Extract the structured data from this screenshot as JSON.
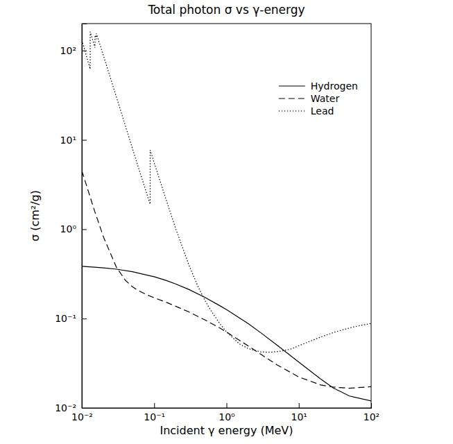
{
  "chart_data": {
    "type": "line",
    "title": "Total photon σ vs γ-energy",
    "x_label": "Incident γ energy (MeV)",
    "y_label": "σ (cm²/g)",
    "log": true,
    "grid": false,
    "legend": "upper right",
    "xlim": [
      0.01,
      100
    ],
    "ylim": [
      0.01,
      200
    ],
    "xticks": [
      {
        "value": 0.01,
        "label": "10⁻²"
      },
      {
        "value": 0.1,
        "label": "10⁻¹"
      },
      {
        "value": 1,
        "label": "10⁰"
      },
      {
        "value": 10,
        "label": "10¹"
      },
      {
        "value": 100,
        "label": "10²"
      }
    ],
    "yticks": [
      {
        "value": 0.01,
        "label": "10⁻²"
      },
      {
        "value": 0.1,
        "label": "10⁻¹"
      },
      {
        "value": 1,
        "label": "10⁰"
      },
      {
        "value": 10,
        "label": "10¹"
      },
      {
        "value": 100,
        "label": "10²"
      }
    ],
    "series": [
      {
        "name": "Hydrogen",
        "color": "#000000",
        "line_style": "solid",
        "x": [
          0.01,
          0.015,
          0.02,
          0.03,
          0.05,
          0.08,
          0.1,
          0.15,
          0.2,
          0.3,
          0.5,
          0.8,
          1,
          2,
          3,
          5,
          10,
          20,
          30,
          50,
          100
        ],
        "values": [
          0.385,
          0.376,
          0.369,
          0.357,
          0.335,
          0.306,
          0.294,
          0.265,
          0.243,
          0.212,
          0.173,
          0.14,
          0.126,
          0.0876,
          0.0691,
          0.0505,
          0.0325,
          0.0211,
          0.0167,
          0.0136,
          0.012
        ]
      },
      {
        "name": "Water",
        "color": "#000000",
        "line_style": "dashed",
        "x": [
          0.01,
          0.015,
          0.02,
          0.03,
          0.04,
          0.05,
          0.06,
          0.08,
          0.1,
          0.15,
          0.2,
          0.3,
          0.5,
          0.8,
          1,
          2,
          3,
          5,
          10,
          20,
          30,
          50,
          100
        ],
        "values": [
          4.5,
          1.6,
          0.81,
          0.376,
          0.268,
          0.227,
          0.206,
          0.184,
          0.171,
          0.151,
          0.137,
          0.119,
          0.0969,
          0.0787,
          0.0707,
          0.0494,
          0.0397,
          0.0303,
          0.0222,
          0.0181,
          0.0171,
          0.0166,
          0.0173
        ]
      },
      {
        "name": "Lead",
        "color": "#000000",
        "line_style": "dotted",
        "x": [
          0.01,
          0.01304,
          0.01304,
          0.015,
          0.0152,
          0.0152,
          0.01586,
          0.01586,
          0.02,
          0.03,
          0.04,
          0.05,
          0.06,
          0.08,
          0.088,
          0.088,
          0.1,
          0.15,
          0.2,
          0.3,
          0.4,
          0.5,
          0.6,
          0.8,
          1,
          1.5,
          2,
          3,
          4,
          5,
          6,
          8,
          10,
          15,
          20,
          30,
          40,
          50,
          60,
          80,
          100
        ],
        "values": [
          130.6,
          62,
          162,
          111.6,
          107.8,
          148.5,
          134.4,
          154.8,
          86.4,
          30.3,
          14.4,
          8.04,
          5.02,
          2.42,
          1.91,
          7.68,
          5.55,
          2.01,
          0.999,
          0.403,
          0.232,
          0.161,
          0.125,
          0.0887,
          0.071,
          0.0522,
          0.0461,
          0.0423,
          0.042,
          0.0427,
          0.0436,
          0.0459,
          0.0497,
          0.0566,
          0.0621,
          0.0697,
          0.0746,
          0.0784,
          0.0813,
          0.0853,
          0.0882
        ]
      }
    ]
  }
}
